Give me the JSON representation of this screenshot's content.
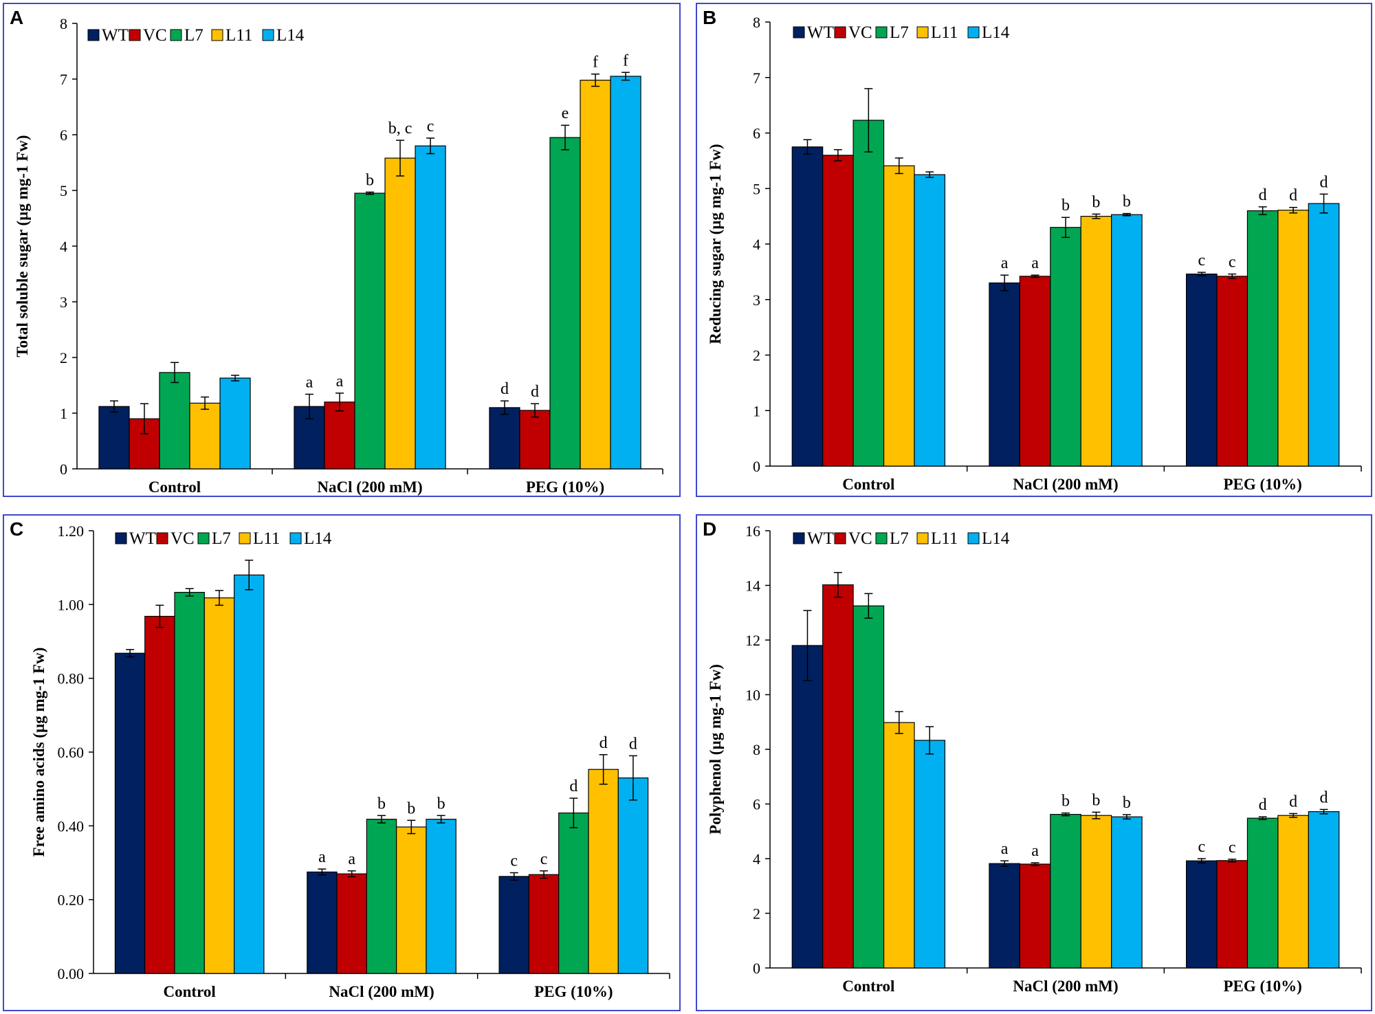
{
  "legend": [
    {
      "name": "WT",
      "color": "#002060"
    },
    {
      "name": "VC",
      "color": "#c00000"
    },
    {
      "name": "L7",
      "color": "#00a651"
    },
    {
      "name": "L11",
      "color": "#ffc000"
    },
    {
      "name": "L14",
      "color": "#00b0f0"
    }
  ],
  "chart_data": [
    {
      "panel": "A",
      "type": "bar",
      "ylabel": "Total soluble sugar (µg mg-1 Fw)",
      "categories": [
        "Control",
        "NaCl (200 mM)",
        "PEG (10%)"
      ],
      "ylim": [
        0,
        8
      ],
      "yticks": [
        "0",
        "1",
        "2",
        "3",
        "4",
        "5",
        "6",
        "7",
        "8"
      ],
      "series": [
        {
          "name": "WT",
          "values": [
            1.12,
            1.12,
            1.1
          ],
          "errors": [
            0.1,
            0.22,
            0.12
          ],
          "letters": [
            "",
            "a",
            "d"
          ]
        },
        {
          "name": "VC",
          "values": [
            0.9,
            1.2,
            1.05
          ],
          "errors": [
            0.27,
            0.16,
            0.12
          ],
          "letters": [
            "",
            "a",
            "d"
          ]
        },
        {
          "name": "L7",
          "values": [
            1.73,
            4.95,
            5.95
          ],
          "errors": [
            0.18,
            0.02,
            0.22
          ],
          "letters": [
            "",
            "b",
            "e"
          ]
        },
        {
          "name": "L11",
          "values": [
            1.18,
            5.58,
            6.98
          ],
          "errors": [
            0.11,
            0.32,
            0.11
          ],
          "letters": [
            "",
            "b, c",
            "f"
          ]
        },
        {
          "name": "L14",
          "values": [
            1.63,
            5.8,
            7.05
          ],
          "errors": [
            0.05,
            0.14,
            0.07
          ],
          "letters": [
            "",
            "c",
            "f"
          ]
        }
      ]
    },
    {
      "panel": "B",
      "type": "bar",
      "ylabel": "Reducing sugar (µg mg-1 Fw)",
      "categories": [
        "Control",
        "NaCl (200 mM)",
        "PEG (10%)"
      ],
      "ylim": [
        0,
        8
      ],
      "yticks": [
        "0",
        "1",
        "2",
        "3",
        "4",
        "5",
        "6",
        "7",
        "8"
      ],
      "series": [
        {
          "name": "WT",
          "values": [
            5.75,
            3.3,
            3.46
          ],
          "errors": [
            0.13,
            0.14,
            0.03
          ],
          "letters": [
            "",
            "a",
            "c"
          ]
        },
        {
          "name": "VC",
          "values": [
            5.6,
            3.42,
            3.42
          ],
          "errors": [
            0.1,
            0.02,
            0.04
          ],
          "letters": [
            "",
            "a",
            "c"
          ]
        },
        {
          "name": "L7",
          "values": [
            6.23,
            4.3,
            4.6
          ],
          "errors": [
            0.57,
            0.18,
            0.07
          ],
          "letters": [
            "",
            "b",
            "d"
          ]
        },
        {
          "name": "L11",
          "values": [
            5.41,
            4.5,
            4.61
          ],
          "errors": [
            0.14,
            0.04,
            0.05
          ],
          "letters": [
            "",
            "b",
            "d"
          ]
        },
        {
          "name": "L14",
          "values": [
            5.25,
            4.53,
            4.73
          ],
          "errors": [
            0.05,
            0.02,
            0.17
          ],
          "letters": [
            "",
            "b",
            "d"
          ]
        }
      ]
    },
    {
      "panel": "C",
      "type": "bar",
      "ylabel": "Free amino acids (µg mg-1 Fw)",
      "categories": [
        "Control",
        "NaCl (200 mM)",
        "PEG (10%)"
      ],
      "ylim": [
        0,
        1.2
      ],
      "yticks": [
        "0.00",
        "0.20",
        "0.40",
        "0.60",
        "0.80",
        "1.00",
        "1.20"
      ],
      "series": [
        {
          "name": "WT",
          "values": [
            0.868,
            0.275,
            0.263
          ],
          "errors": [
            0.01,
            0.008,
            0.01
          ],
          "letters": [
            "",
            "a",
            "c"
          ]
        },
        {
          "name": "VC",
          "values": [
            0.968,
            0.27,
            0.268
          ],
          "errors": [
            0.03,
            0.008,
            0.01
          ],
          "letters": [
            "",
            "a",
            "c"
          ]
        },
        {
          "name": "L7",
          "values": [
            1.033,
            0.418,
            0.435
          ],
          "errors": [
            0.01,
            0.01,
            0.04
          ],
          "letters": [
            "",
            "b",
            "d"
          ]
        },
        {
          "name": "L11",
          "values": [
            1.018,
            0.397,
            0.553
          ],
          "errors": [
            0.02,
            0.018,
            0.04
          ],
          "letters": [
            "",
            "b",
            "d"
          ]
        },
        {
          "name": "L14",
          "values": [
            1.08,
            0.418,
            0.53
          ],
          "errors": [
            0.04,
            0.01,
            0.06
          ],
          "letters": [
            "",
            "b",
            "d"
          ]
        }
      ]
    },
    {
      "panel": "D",
      "type": "bar",
      "ylabel": "Polyphenol (µg mg-1 Fw)",
      "categories": [
        "Control",
        "NaCl (200 mM)",
        "PEG (10%)"
      ],
      "ylim": [
        0,
        16
      ],
      "yticks": [
        "0",
        "2",
        "4",
        "6",
        "8",
        "10",
        "12",
        "14",
        "16"
      ],
      "series": [
        {
          "name": "WT",
          "values": [
            11.8,
            3.82,
            3.92
          ],
          "errors": [
            1.28,
            0.1,
            0.08
          ],
          "letters": [
            "",
            "a",
            "c"
          ]
        },
        {
          "name": "VC",
          "values": [
            14.02,
            3.8,
            3.93
          ],
          "errors": [
            0.45,
            0.05,
            0.05
          ],
          "letters": [
            "",
            "a",
            "c"
          ]
        },
        {
          "name": "L7",
          "values": [
            13.25,
            5.62,
            5.48
          ],
          "errors": [
            0.45,
            0.05,
            0.05
          ],
          "letters": [
            "",
            "b",
            "d"
          ]
        },
        {
          "name": "L11",
          "values": [
            8.98,
            5.58,
            5.58
          ],
          "errors": [
            0.4,
            0.12,
            0.07
          ],
          "letters": [
            "",
            "b",
            "d"
          ]
        },
        {
          "name": "L14",
          "values": [
            8.33,
            5.53,
            5.72
          ],
          "errors": [
            0.5,
            0.08,
            0.08
          ],
          "letters": [
            "",
            "b",
            "d"
          ]
        }
      ]
    }
  ]
}
